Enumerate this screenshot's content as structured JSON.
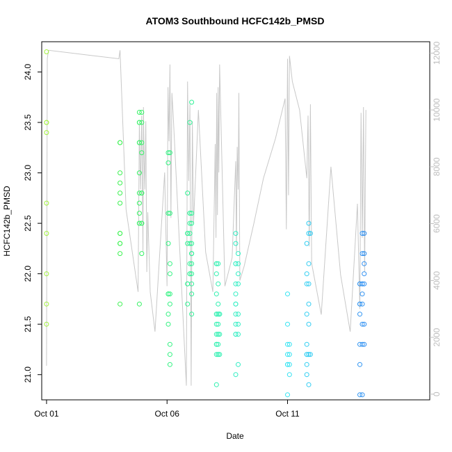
{
  "chart_data": {
    "type": "scatter",
    "title": "ATOM3 Southbound HCFC142b_PMSD",
    "xlabel": "Date",
    "ylabel": "HCFC142b_PMSD",
    "x_unit": "days",
    "xlim": [
      30.8,
      46.9
    ],
    "ylim": [
      20.75,
      24.3
    ],
    "x_ticks": [
      {
        "value": 31,
        "label": "Oct 01"
      },
      {
        "value": 36,
        "label": "Oct 06"
      },
      {
        "value": 41,
        "label": "Oct 11"
      }
    ],
    "y_ticks": [
      {
        "value": 21.0,
        "label": "21.0"
      },
      {
        "value": 21.5,
        "label": "21.5"
      },
      {
        "value": 22.0,
        "label": "22.0"
      },
      {
        "value": 22.5,
        "label": "22.5"
      },
      {
        "value": 23.0,
        "label": "23.0"
      },
      {
        "value": 23.5,
        "label": "23.5"
      },
      {
        "value": 24.0,
        "label": "24.0"
      }
    ],
    "y2lim": [
      -200,
      12400
    ],
    "y2_ticks": [
      0,
      2000,
      4000,
      6000,
      8000,
      10000,
      12000
    ],
    "grid": false,
    "series": [
      {
        "kind": "points",
        "marker": "open-circle",
        "color_ramp": [
          "#a2f23c",
          "#37f256",
          "#2df2a4",
          "#34e7f2",
          "#2e8ff2"
        ],
        "groups": [
          {
            "x": 31.0,
            "y": [
              24.2,
              23.5,
              23.5,
              23.4,
              22.7,
              22.4,
              22.0,
              21.7,
              21.5
            ]
          },
          {
            "x": 34.05,
            "y": [
              23.3,
              23.3,
              23.0,
              22.9,
              22.8,
              22.7,
              22.4,
              22.4,
              22.3,
              22.3,
              22.2,
              21.7
            ]
          },
          {
            "x": 34.85,
            "y": [
              23.6,
              23.5,
              23.5,
              23.3,
              23.3,
              23.0,
              22.8,
              22.7,
              22.6,
              22.5,
              22.5,
              21.7
            ]
          },
          {
            "x": 34.95,
            "y": [
              23.6,
              23.5,
              23.3,
              23.2,
              22.8,
              22.8,
              22.5,
              22.5,
              22.2
            ]
          },
          {
            "x": 36.05,
            "y": [
              23.2,
              23.1,
              22.6,
              22.3,
              21.8,
              21.8,
              21.8,
              21.6,
              21.5
            ]
          },
          {
            "x": 36.12,
            "y": [
              23.2,
              22.6,
              22.1,
              22.0,
              21.8,
              21.7,
              21.3,
              21.2,
              21.1
            ]
          },
          {
            "x": 36.85,
            "y": [
              22.8,
              22.4,
              22.4,
              22.3,
              21.9,
              21.9,
              21.7
            ]
          },
          {
            "x": 36.95,
            "y": [
              23.5,
              22.6,
              22.6,
              22.5,
              22.4,
              22.3,
              22.1,
              22.0,
              22.0
            ]
          },
          {
            "x": 37.02,
            "y": [
              23.7,
              22.6,
              22.5,
              22.3,
              22.2,
              22.2,
              22.1,
              22.0,
              21.9,
              21.8,
              21.6
            ]
          },
          {
            "x": 38.05,
            "y": [
              22.1,
              22.1,
              22.0,
              21.8,
              21.6,
              21.6,
              21.5,
              21.4,
              21.3,
              21.3,
              21.2,
              20.9
            ]
          },
          {
            "x": 38.12,
            "y": [
              22.1,
              21.9,
              21.7,
              21.6,
              21.6,
              21.5,
              21.4,
              21.4,
              21.3,
              21.2,
              21.2
            ]
          },
          {
            "x": 38.18,
            "y": [
              21.6,
              21.6,
              21.4,
              21.2
            ]
          },
          {
            "x": 38.85,
            "y": [
              22.4,
              22.3,
              22.1,
              22.1,
              21.9,
              21.8,
              21.7,
              21.7,
              21.6,
              21.5,
              21.4,
              21.4,
              21.0
            ]
          },
          {
            "x": 38.95,
            "y": [
              22.2,
              22.1,
              22.0,
              21.9,
              21.6,
              21.5,
              21.4,
              21.1
            ]
          },
          {
            "x": 41.0,
            "y": [
              21.8,
              21.5,
              21.3,
              21.2,
              21.1,
              21.1,
              20.8
            ]
          },
          {
            "x": 41.08,
            "y": [
              21.3,
              21.2,
              21.1,
              21.0
            ]
          },
          {
            "x": 41.8,
            "y": [
              22.3,
              22.0,
              21.9,
              21.6,
              21.3,
              21.2,
              21.2,
              21.1,
              21.0
            ]
          },
          {
            "x": 41.88,
            "y": [
              22.5,
              22.4,
              22.1,
              21.9,
              21.7,
              21.5,
              21.2,
              21.2,
              20.9
            ]
          },
          {
            "x": 41.95,
            "y": [
              22.4,
              21.2
            ]
          },
          {
            "x": 44.0,
            "y": [
              21.9,
              21.9,
              21.7,
              21.7,
              21.6,
              21.3,
              21.1,
              20.8
            ]
          },
          {
            "x": 44.1,
            "y": [
              22.4,
              22.2,
              21.9,
              21.9,
              21.8,
              21.7,
              21.5,
              21.3,
              20.8
            ]
          },
          {
            "x": 44.18,
            "y": [
              22.4,
              22.2,
              22.1,
              22.0,
              21.9,
              21.5,
              21.3
            ]
          }
        ]
      },
      {
        "kind": "line",
        "color": "#c8c8c8",
        "axis": "right",
        "x": [
          31.0,
          31.03,
          31.08,
          34.0,
          34.05,
          34.3,
          34.8,
          34.85,
          34.9,
          34.95,
          35.0,
          35.02,
          35.05,
          35.08,
          35.12,
          35.16,
          35.2,
          35.3,
          35.5,
          35.7,
          35.9,
          36.0,
          36.04,
          36.08,
          36.12,
          36.16,
          36.2,
          36.25,
          36.8,
          36.85,
          36.9,
          36.95,
          37.0,
          37.05,
          37.1,
          37.3,
          37.6,
          37.9,
          38.0,
          38.03,
          38.06,
          38.09,
          38.12,
          38.15,
          38.18,
          38.4,
          38.7,
          38.85,
          38.88,
          38.91,
          38.95,
          38.98,
          39.02,
          39.2,
          39.6,
          40.0,
          40.5,
          40.9,
          40.95,
          41.0,
          41.04,
          41.08,
          41.2,
          41.5,
          41.8,
          41.85,
          41.9,
          41.95,
          42.0,
          42.4,
          42.8,
          43.2,
          43.6,
          43.9,
          44.0,
          44.05,
          44.1,
          44.15,
          44.2,
          44.25
        ],
        "y": [
          1000,
          11800,
          12100,
          11800,
          12100,
          6500,
          3600,
          9500,
          7200,
          9800,
          5000,
          10100,
          8200,
          7200,
          9600,
          4300,
          6400,
          3600,
          2200,
          5000,
          7800,
          3800,
          10800,
          8900,
          11600,
          6200,
          10600,
          9900,
          300,
          11000,
          7500,
          10200,
          300,
          9600,
          6000,
          10000,
          5000,
          3600,
          8800,
          5500,
          10600,
          6300,
          10800,
          7800,
          11600,
          3800,
          4800,
          8200,
          5000,
          8700,
          7200,
          10600,
          4000,
          4500,
          6000,
          7600,
          9000,
          10400,
          5800,
          11800,
          7000,
          11900,
          11000,
          10000,
          7600,
          9800,
          5200,
          10200,
          4600,
          2800,
          8000,
          4200,
          2200,
          6700,
          3000,
          9900,
          5500,
          10100,
          4300,
          10000
        ]
      }
    ]
  }
}
